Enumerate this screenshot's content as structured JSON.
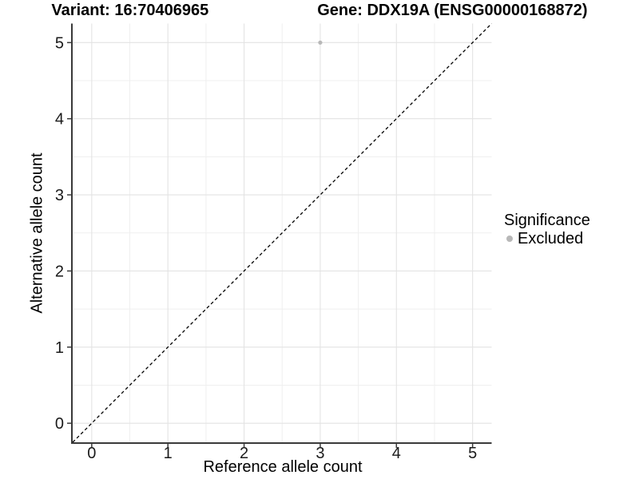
{
  "title": {
    "variant": "Variant: 16:70406965",
    "gene": "Gene: DDX19A (ENSG00000168872)"
  },
  "axes": {
    "x_label": "Reference allele count",
    "y_label": "Alternative allele count"
  },
  "legend": {
    "title": "Significance",
    "items": [
      {
        "label": "Excluded",
        "color": "#b8b8b8",
        "marker": "circle"
      }
    ]
  },
  "chart_data": {
    "type": "scatter",
    "title": "Variant: 16:70406965    Gene: DDX19A (ENSG00000168872)",
    "xlabel": "Reference allele count",
    "ylabel": "Alternative allele count",
    "xlim": [
      -0.25,
      5.25
    ],
    "ylim": [
      -0.25,
      5.25
    ],
    "x_ticks": [
      0,
      1,
      2,
      3,
      4,
      5
    ],
    "y_ticks": [
      0,
      1,
      2,
      3,
      4,
      5
    ],
    "grid": "major+minor",
    "legend_position": "right-center",
    "series": [
      {
        "name": "Excluded",
        "color": "#b8b8b8",
        "points": [
          {
            "x": 3,
            "y": 5
          }
        ]
      }
    ],
    "reference_line": {
      "slope": 1,
      "intercept": 0,
      "style": "dashed",
      "color": "#000000"
    }
  },
  "colors": {
    "background": "#ffffff",
    "grid_major": "#e3e3e3",
    "grid_minor": "#efefef",
    "axis_line": "#3a3a3a",
    "tick_text": "#1a1a1a",
    "point": "#b8b8b8"
  }
}
